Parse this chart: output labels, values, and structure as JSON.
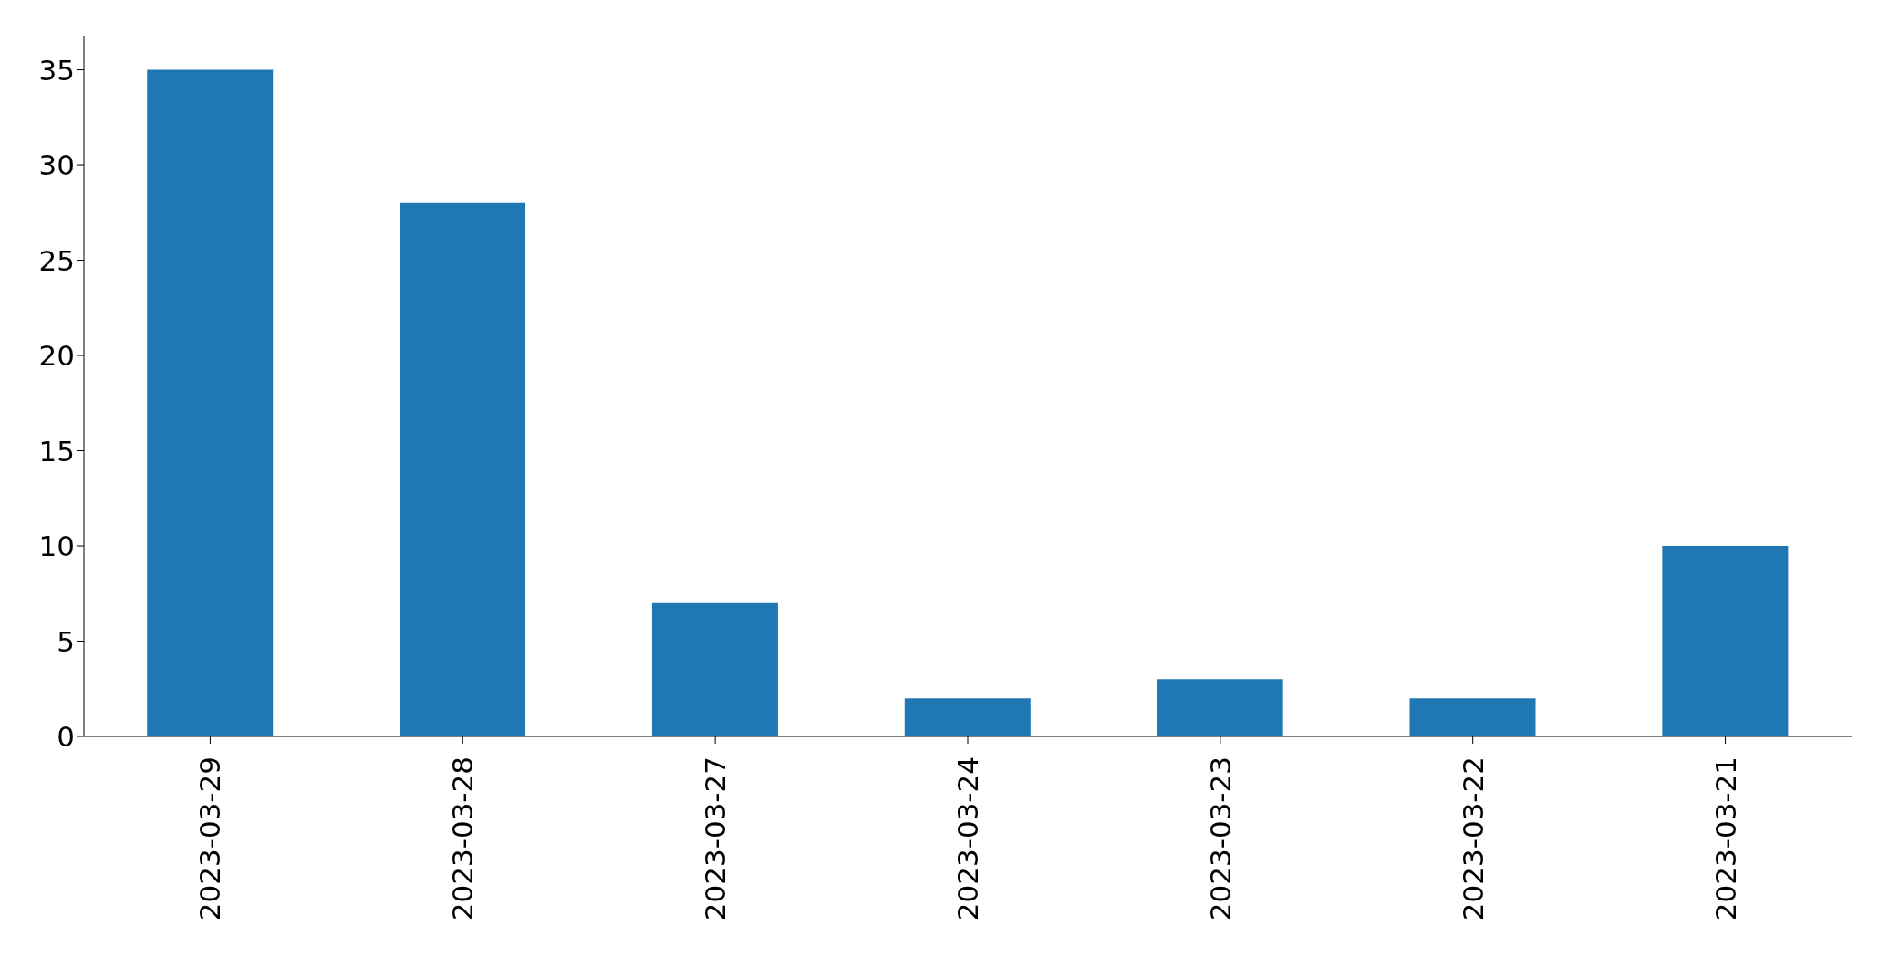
{
  "chart_data": {
    "type": "bar",
    "categories": [
      "2023-03-29",
      "2023-03-28",
      "2023-03-27",
      "2023-03-24",
      "2023-03-23",
      "2023-03-22",
      "2023-03-21"
    ],
    "values": [
      35,
      28,
      7,
      2,
      3,
      2,
      10
    ],
    "color": "#1f77b4",
    "ylim": [
      0,
      36.75
    ],
    "yticks": [
      0,
      5,
      10,
      15,
      20,
      25,
      30,
      35
    ]
  }
}
